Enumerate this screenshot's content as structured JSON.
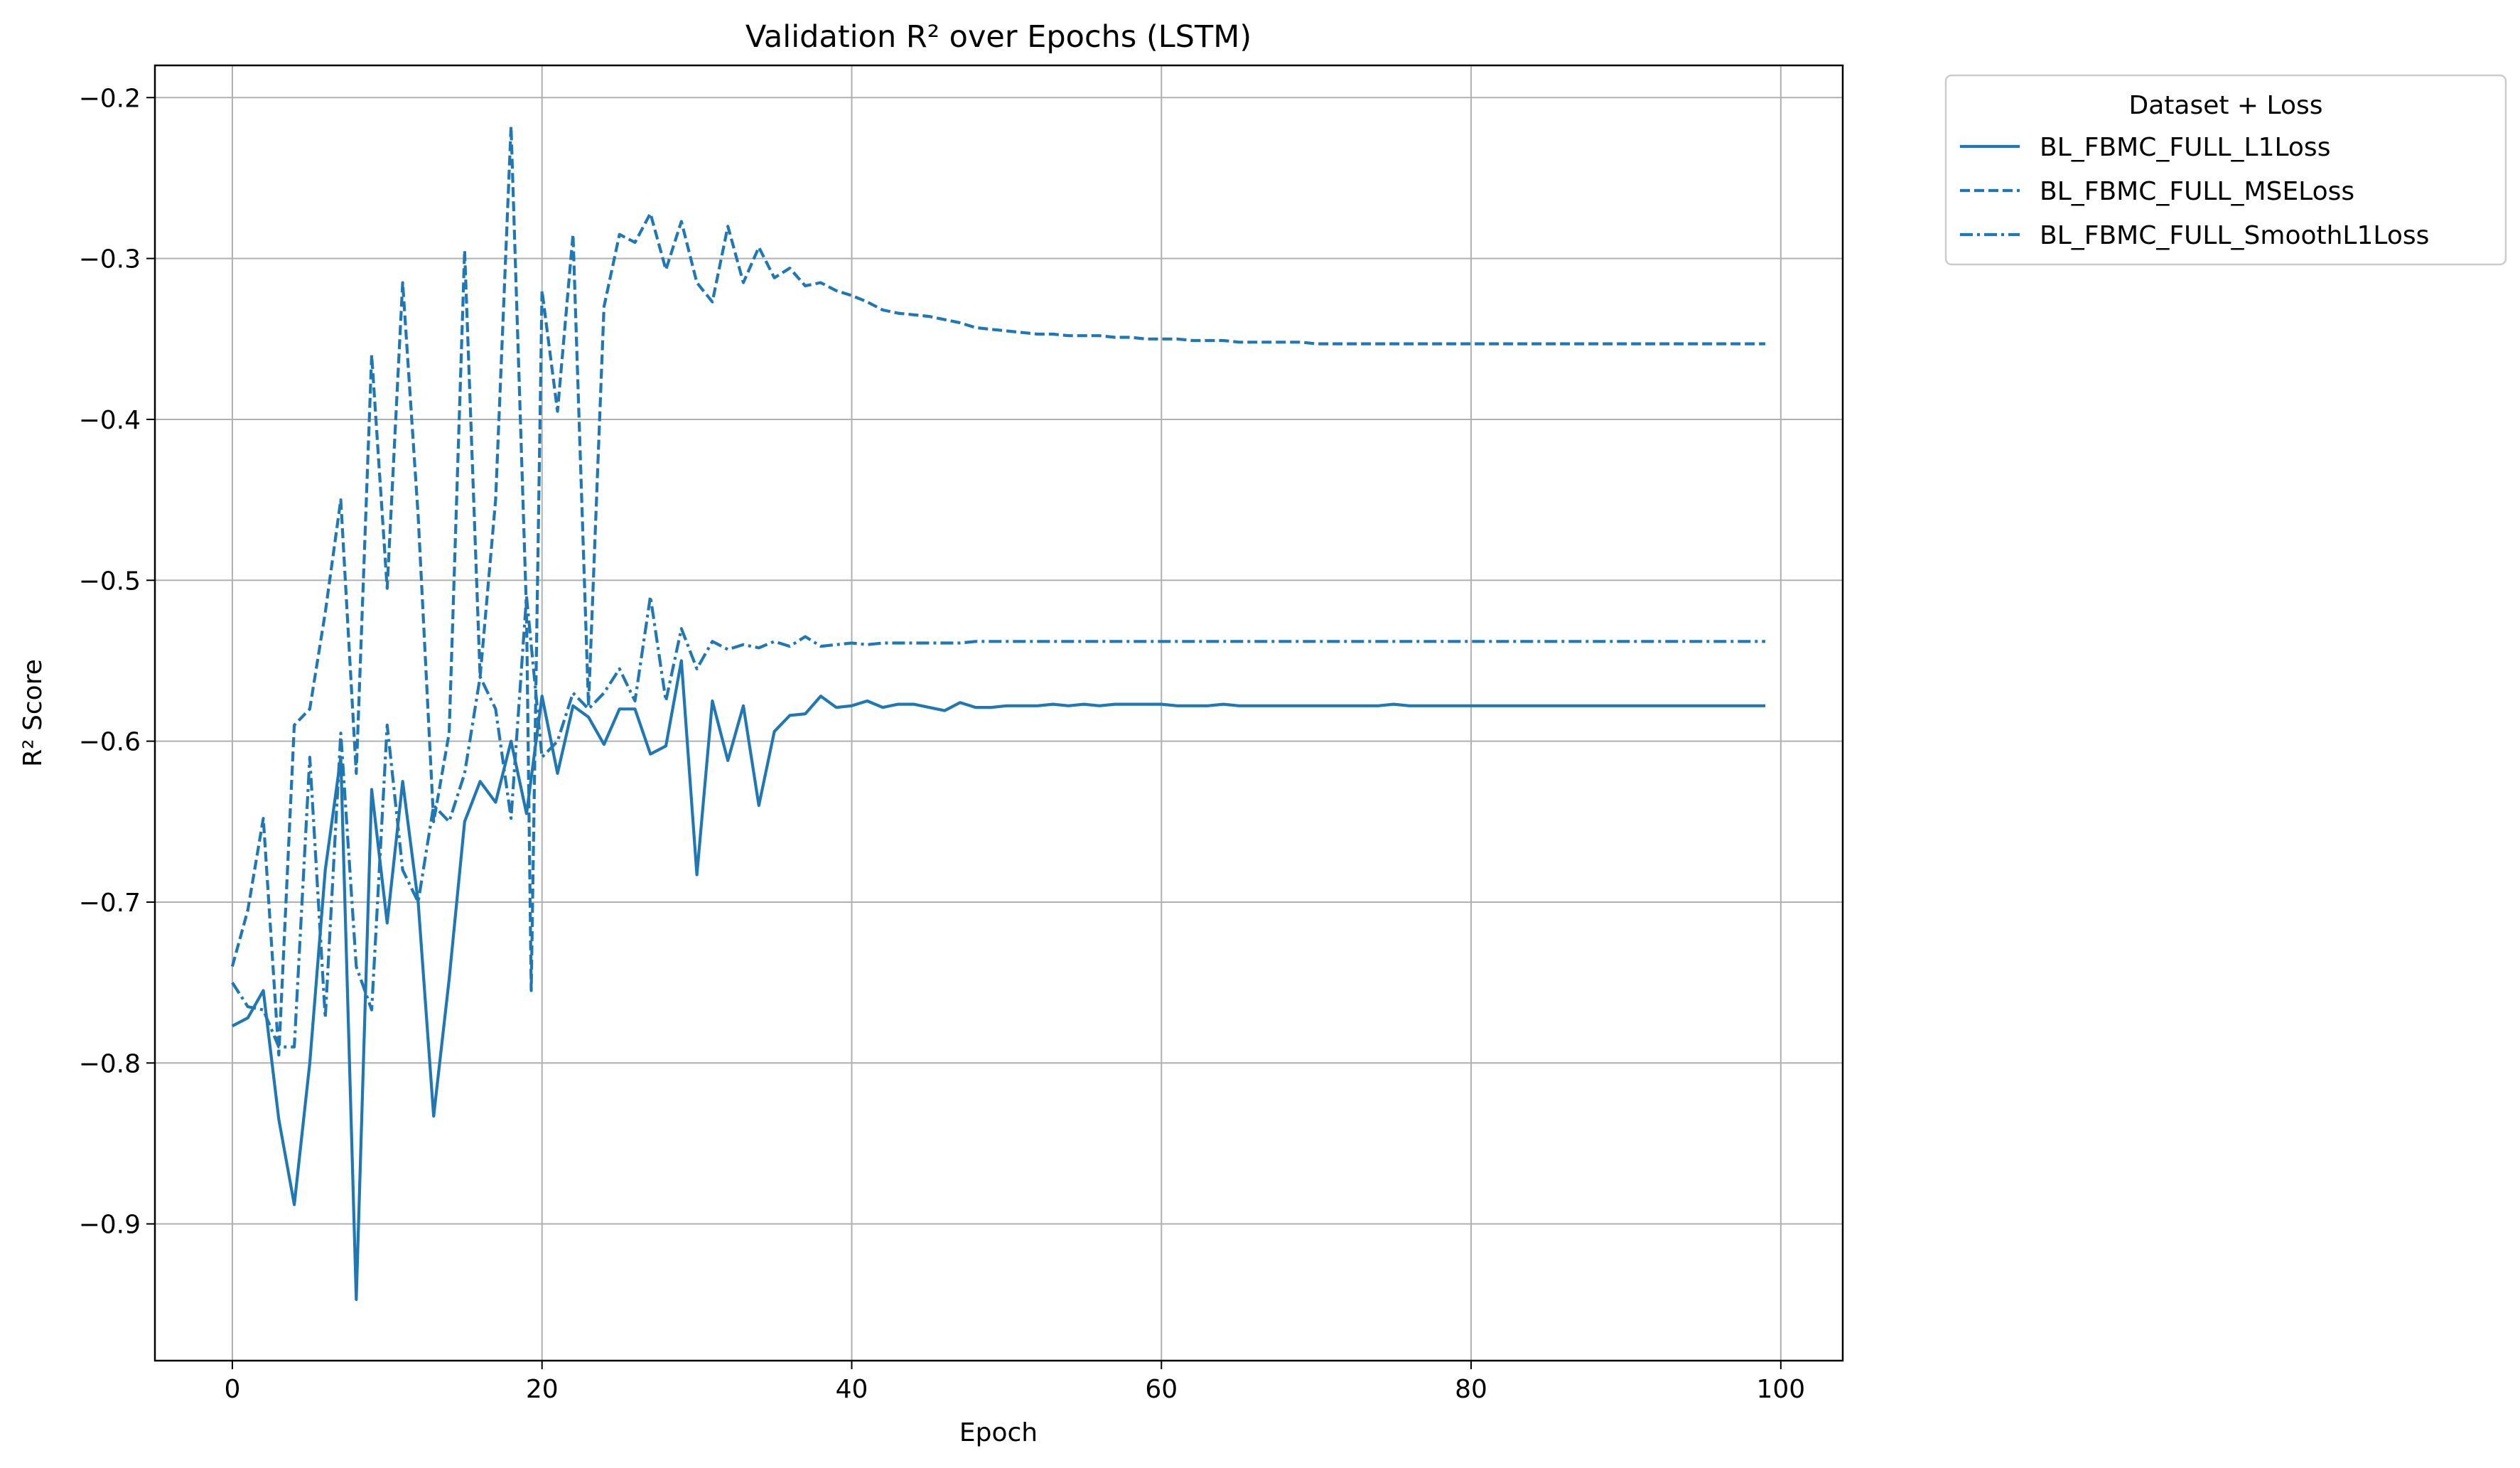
{
  "chart_data": {
    "type": "line",
    "title": "Validation R² over Epochs (LSTM)",
    "xlabel": "Epoch",
    "ylabel": "R² Score",
    "xlim": [
      -5,
      104
    ],
    "ylim": [
      -0.985,
      -0.18
    ],
    "xticks": [
      0,
      20,
      40,
      60,
      80,
      100
    ],
    "yticks": [
      -0.9,
      -0.8,
      -0.7,
      -0.6,
      -0.5,
      -0.4,
      -0.3,
      -0.2
    ],
    "grid": true,
    "color": "#1f77b4",
    "legend": {
      "title": "Dataset + Loss",
      "placement": "outside-top-right"
    },
    "series": [
      {
        "name": "BL_FBMC_FULL_L1Loss",
        "dash": "solid",
        "x": [
          0,
          1,
          2,
          3,
          4,
          5,
          6,
          7,
          8,
          9,
          10,
          11,
          12,
          13,
          14,
          15,
          16,
          17,
          18,
          19,
          20,
          21,
          22,
          23,
          24,
          25,
          26,
          27,
          28,
          29,
          30,
          31,
          32,
          33,
          34,
          35,
          36,
          37,
          38,
          39,
          40,
          41,
          42,
          43,
          44,
          45,
          46,
          47,
          48,
          49,
          50,
          51,
          52,
          53,
          54,
          55,
          56,
          57,
          58,
          59,
          60,
          61,
          62,
          63,
          64,
          65,
          66,
          67,
          68,
          69,
          70,
          71,
          72,
          73,
          74,
          75,
          76,
          77,
          78,
          79,
          80,
          81,
          82,
          83,
          84,
          85,
          86,
          87,
          88,
          89,
          90,
          91,
          92,
          93,
          94,
          95,
          96,
          97,
          98,
          99
        ],
        "y": [
          -0.777,
          -0.772,
          -0.755,
          -0.835,
          -0.888,
          -0.8,
          -0.68,
          -0.61,
          -0.947,
          -0.63,
          -0.713,
          -0.625,
          -0.7,
          -0.833,
          -0.748,
          -0.65,
          -0.625,
          -0.638,
          -0.6,
          -0.645,
          -0.572,
          -0.62,
          -0.578,
          -0.585,
          -0.602,
          -0.58,
          -0.58,
          -0.608,
          -0.603,
          -0.55,
          -0.683,
          -0.575,
          -0.612,
          -0.578,
          -0.64,
          -0.594,
          -0.584,
          -0.583,
          -0.572,
          -0.579,
          -0.578,
          -0.575,
          -0.579,
          -0.577,
          -0.577,
          -0.579,
          -0.581,
          -0.576,
          -0.579,
          -0.579,
          -0.578,
          -0.578,
          -0.578,
          -0.577,
          -0.578,
          -0.577,
          -0.578,
          -0.577,
          -0.577,
          -0.577,
          -0.577,
          -0.578,
          -0.578,
          -0.578,
          -0.577,
          -0.578,
          -0.578,
          -0.578,
          -0.578,
          -0.578,
          -0.578,
          -0.578,
          -0.578,
          -0.578,
          -0.578,
          -0.577,
          -0.578,
          -0.578,
          -0.578,
          -0.578,
          -0.578,
          -0.578,
          -0.578,
          -0.578,
          -0.578,
          -0.578,
          -0.578,
          -0.578,
          -0.578,
          -0.578,
          -0.578,
          -0.578,
          -0.578,
          -0.578,
          -0.578,
          -0.578,
          -0.578,
          -0.578,
          -0.578,
          -0.578
        ]
      },
      {
        "name": "BL_FBMC_FULL_MSELoss",
        "dash": "dashed",
        "x": [
          0,
          1,
          2,
          3,
          4,
          5,
          6,
          7,
          8,
          9,
          10,
          11,
          12,
          13,
          14,
          15,
          16,
          17,
          18,
          19,
          19.3,
          20,
          21,
          22,
          23,
          24,
          25,
          26,
          27,
          28,
          29,
          30,
          31,
          32,
          33,
          34,
          35,
          36,
          37,
          38,
          39,
          40,
          41,
          42,
          43,
          44,
          45,
          46,
          47,
          48,
          49,
          50,
          51,
          52,
          53,
          54,
          55,
          56,
          57,
          58,
          59,
          60,
          61,
          62,
          63,
          64,
          65,
          66,
          67,
          68,
          69,
          70,
          71,
          72,
          73,
          74,
          75,
          76,
          77,
          78,
          79,
          80,
          81,
          82,
          83,
          84,
          85,
          86,
          87,
          88,
          89,
          90,
          91,
          92,
          93,
          94,
          95,
          96,
          97,
          98,
          99
        ],
        "y": [
          -0.74,
          -0.705,
          -0.648,
          -0.795,
          -0.59,
          -0.58,
          -0.52,
          -0.45,
          -0.62,
          -0.36,
          -0.505,
          -0.315,
          -0.46,
          -0.65,
          -0.595,
          -0.295,
          -0.56,
          -0.45,
          -0.218,
          -0.52,
          -0.755,
          -0.32,
          -0.395,
          -0.285,
          -0.578,
          -0.33,
          -0.285,
          -0.29,
          -0.272,
          -0.307,
          -0.277,
          -0.315,
          -0.327,
          -0.28,
          -0.315,
          -0.293,
          -0.312,
          -0.306,
          -0.317,
          -0.315,
          -0.32,
          -0.323,
          -0.327,
          -0.332,
          -0.334,
          -0.335,
          -0.336,
          -0.338,
          -0.34,
          -0.343,
          -0.344,
          -0.345,
          -0.346,
          -0.347,
          -0.347,
          -0.348,
          -0.348,
          -0.348,
          -0.349,
          -0.349,
          -0.35,
          -0.35,
          -0.35,
          -0.351,
          -0.351,
          -0.351,
          -0.352,
          -0.352,
          -0.352,
          -0.352,
          -0.352,
          -0.353,
          -0.353,
          -0.353,
          -0.353,
          -0.353,
          -0.353,
          -0.353,
          -0.353,
          -0.353,
          -0.353,
          -0.353,
          -0.353,
          -0.353,
          -0.353,
          -0.353,
          -0.353,
          -0.353,
          -0.353,
          -0.353,
          -0.353,
          -0.353,
          -0.353,
          -0.353,
          -0.353,
          -0.353,
          -0.353,
          -0.353,
          -0.353,
          -0.353,
          -0.353
        ]
      },
      {
        "name": "BL_FBMC_FULL_SmoothL1Loss",
        "dash": "dashdot",
        "x": [
          0,
          1,
          2,
          3,
          4,
          5,
          6,
          7,
          8,
          9,
          10,
          11,
          12,
          13,
          14,
          15,
          16,
          17,
          18,
          19,
          20,
          21,
          22,
          23,
          24,
          25,
          26,
          27,
          28,
          29,
          30,
          31,
          32,
          33,
          34,
          35,
          36,
          37,
          38,
          39,
          40,
          41,
          42,
          43,
          44,
          45,
          46,
          47,
          48,
          49,
          50,
          51,
          52,
          53,
          54,
          55,
          56,
          57,
          58,
          59,
          60,
          61,
          62,
          63,
          64,
          65,
          66,
          67,
          68,
          69,
          70,
          71,
          72,
          73,
          74,
          75,
          76,
          77,
          78,
          79,
          80,
          81,
          82,
          83,
          84,
          85,
          86,
          87,
          88,
          89,
          90,
          91,
          92,
          93,
          94,
          95,
          96,
          97,
          98,
          99
        ],
        "y": [
          -0.75,
          -0.765,
          -0.767,
          -0.79,
          -0.79,
          -0.61,
          -0.772,
          -0.595,
          -0.74,
          -0.767,
          -0.59,
          -0.68,
          -0.7,
          -0.64,
          -0.65,
          -0.62,
          -0.56,
          -0.58,
          -0.648,
          -0.51,
          -0.61,
          -0.6,
          -0.57,
          -0.58,
          -0.57,
          -0.555,
          -0.575,
          -0.51,
          -0.575,
          -0.53,
          -0.555,
          -0.538,
          -0.543,
          -0.54,
          -0.542,
          -0.538,
          -0.541,
          -0.535,
          -0.541,
          -0.54,
          -0.539,
          -0.54,
          -0.539,
          -0.539,
          -0.539,
          -0.539,
          -0.539,
          -0.539,
          -0.538,
          -0.538,
          -0.538,
          -0.538,
          -0.538,
          -0.538,
          -0.538,
          -0.538,
          -0.538,
          -0.538,
          -0.538,
          -0.538,
          -0.538,
          -0.538,
          -0.538,
          -0.538,
          -0.538,
          -0.538,
          -0.538,
          -0.538,
          -0.538,
          -0.538,
          -0.538,
          -0.538,
          -0.538,
          -0.538,
          -0.538,
          -0.538,
          -0.538,
          -0.538,
          -0.538,
          -0.538,
          -0.538,
          -0.538,
          -0.538,
          -0.538,
          -0.538,
          -0.538,
          -0.538,
          -0.538,
          -0.538,
          -0.538,
          -0.538,
          -0.538,
          -0.538,
          -0.538,
          -0.538,
          -0.538,
          -0.538,
          -0.538,
          -0.538,
          -0.538
        ]
      }
    ]
  }
}
